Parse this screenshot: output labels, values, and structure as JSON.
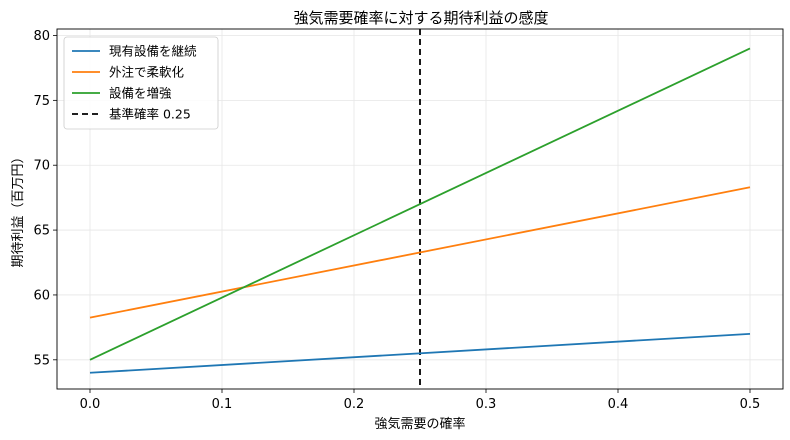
{
  "chart_data": {
    "type": "line",
    "title": "強気需要確率に対する期待利益の感度",
    "xlabel": "強気需要の確率",
    "ylabel": "期待利益（百万円）",
    "xlim": [
      -0.025,
      0.525
    ],
    "ylim": [
      52.75,
      80.5
    ],
    "xticks": [
      0.0,
      0.1,
      0.2,
      0.3,
      0.4,
      0.5
    ],
    "xtick_labels": [
      "0.0",
      "0.1",
      "0.2",
      "0.3",
      "0.4",
      "0.5"
    ],
    "yticks": [
      55,
      60,
      65,
      70,
      75,
      80
    ],
    "ytick_labels": [
      "55",
      "60",
      "65",
      "70",
      "75",
      "80"
    ],
    "grid": true,
    "legend_position": "top-left",
    "x": [
      0.0,
      0.5
    ],
    "series": [
      {
        "name": "現有設備を継続",
        "color": "#1f77b4",
        "values": [
          54.0,
          57.0
        ]
      },
      {
        "name": "外注で柔軟化",
        "color": "#ff7f0e",
        "values": [
          58.25,
          68.3
        ]
      },
      {
        "name": "設備を増強",
        "color": "#2ca02c",
        "values": [
          55.0,
          79.0
        ]
      }
    ],
    "reference_line": {
      "name": "基準確率 0.25",
      "x": 0.25,
      "color": "#000000",
      "style": "dashed"
    }
  }
}
